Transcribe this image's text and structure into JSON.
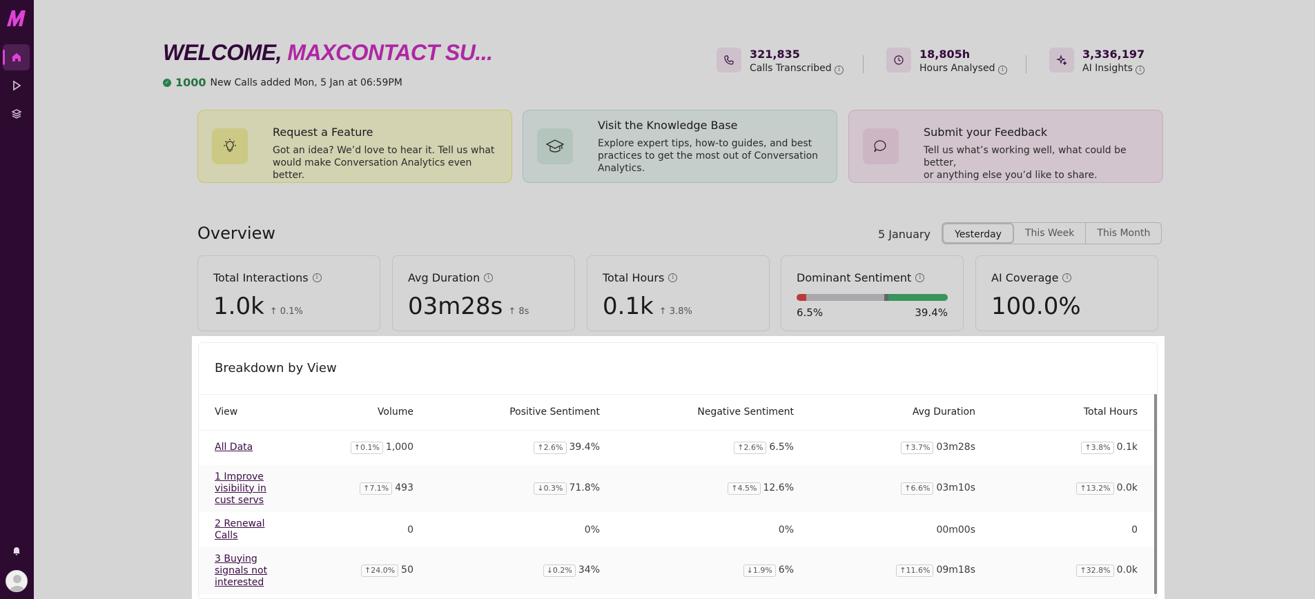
{
  "welcome": {
    "prefix": "WELCOME,",
    "name": "MAXCONTACT SU..."
  },
  "new_calls": {
    "count": "1000",
    "text": "New Calls added Mon, 5 Jan at 06:59PM"
  },
  "kpis": [
    {
      "value": "321,835",
      "label": "Calls Transcribed",
      "icon": "phone-icon"
    },
    {
      "value": "18,805h",
      "label": "Hours Analysed",
      "icon": "clock-icon"
    },
    {
      "value": "3,336,197",
      "label": "AI Insights",
      "icon": "sparkle-icon"
    }
  ],
  "cards": [
    {
      "title": "Request a Feature",
      "desc_l1": "Got an idea? We’d love to hear it. Tell us what",
      "desc_l2": "would make Conversation Analytics even better.",
      "desc_l3": "",
      "icon": "lightbulb-icon",
      "color": "#fdfcd4"
    },
    {
      "title": "Visit the Knowledge Base",
      "desc_l1": "Explore expert tips, how-to guides, and best",
      "desc_l2": "practices to get the most out of Conversation",
      "desc_l3": "Analytics.",
      "icon": "graduation-cap-icon",
      "color": "#eef7f3"
    },
    {
      "title": "Submit your Feedback",
      "desc_l1": "Tell us what’s working well, what could be better,",
      "desc_l2": "or anything else you’d like to share.",
      "desc_l3": "",
      "icon": "chat-bubble-icon",
      "color": "#fcecf6"
    }
  ],
  "overview": {
    "title": "Overview",
    "date": "5 January",
    "ranges": [
      "Yesterday",
      "This Week",
      "This Month"
    ],
    "active_range": "Yesterday",
    "stats": [
      {
        "label": "Total Interactions",
        "value": "1.0k",
        "delta": "0.1%"
      },
      {
        "label": "Avg Duration",
        "value": "03m28s",
        "delta": "8s"
      },
      {
        "label": "Total Hours",
        "value": "0.1k",
        "delta": "3.8%"
      },
      {
        "label": "Dominant Sentiment",
        "negative": "6.5%",
        "positive": "39.4%",
        "negative_fraction": 0.065,
        "positive_fraction": 0.394
      },
      {
        "label": "AI Coverage",
        "value": "100.0%"
      }
    ]
  },
  "breakdown": {
    "title": "Breakdown by View",
    "columns": [
      "View",
      "Volume",
      "Positive Sentiment",
      "Negative Sentiment",
      "Avg Duration",
      "Total Hours"
    ],
    "rows": [
      {
        "view": "All Data",
        "volume": {
          "chip": "0.1%",
          "dir": "up",
          "val": "1,000"
        },
        "pos": {
          "chip": "2.6%",
          "dir": "up",
          "val": "39.4%"
        },
        "neg": {
          "chip": "2.6%",
          "dir": "up",
          "val": "6.5%"
        },
        "dur": {
          "chip": "3.7%",
          "dir": "up",
          "val": "03m28s"
        },
        "hours": {
          "chip": "3.8%",
          "dir": "up",
          "val": "0.1k"
        }
      },
      {
        "view": "1 Improve visibility in cust servs",
        "volume": {
          "chip": "7.1%",
          "dir": "up",
          "val": "493"
        },
        "pos": {
          "chip": "0.3%",
          "dir": "down",
          "val": "71.8%"
        },
        "neg": {
          "chip": "4.5%",
          "dir": "up",
          "val": "12.6%"
        },
        "dur": {
          "chip": "6.6%",
          "dir": "up",
          "val": "03m10s"
        },
        "hours": {
          "chip": "13.2%",
          "dir": "up",
          "val": "0.0k"
        }
      },
      {
        "view": "2 Renewal Calls",
        "volume": {
          "chip": "",
          "dir": "",
          "val": "0"
        },
        "pos": {
          "chip": "",
          "dir": "",
          "val": "0%"
        },
        "neg": {
          "chip": "",
          "dir": "",
          "val": "0%"
        },
        "dur": {
          "chip": "",
          "dir": "",
          "val": "00m00s"
        },
        "hours": {
          "chip": "",
          "dir": "",
          "val": "0"
        }
      },
      {
        "view": "3 Buying signals not interested",
        "volume": {
          "chip": "24.0%",
          "dir": "up",
          "val": "50"
        },
        "pos": {
          "chip": "0.2%",
          "dir": "down",
          "val": "34%"
        },
        "neg": {
          "chip": "1.9%",
          "dir": "down",
          "val": "6%"
        },
        "dur": {
          "chip": "11.6%",
          "dir": "up",
          "val": "09m18s"
        },
        "hours": {
          "chip": "32.8%",
          "dir": "up",
          "val": "0.0k"
        }
      }
    ]
  }
}
